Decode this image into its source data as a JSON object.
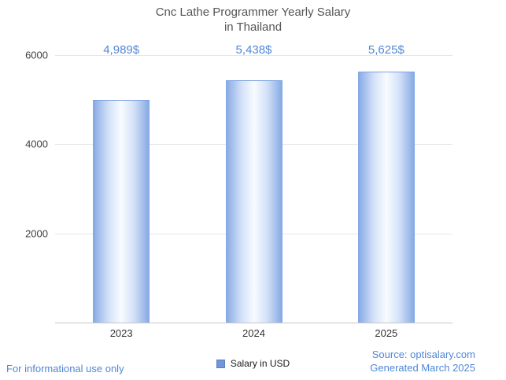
{
  "title": {
    "line1": "Cnc Lathe Programmer Yearly Salary",
    "line2": "in Thailand"
  },
  "chart_data": {
    "type": "bar",
    "categories": [
      "2023",
      "2024",
      "2025"
    ],
    "values": [
      4989,
      5438,
      5625
    ],
    "value_labels": [
      "4,989$",
      "5,438$",
      "5,625$"
    ],
    "series_name": "Salary in USD",
    "title": "Cnc Lathe Programmer Yearly Salary in Thailand",
    "xlabel": "",
    "ylabel": "",
    "ylim": [
      0,
      6000
    ],
    "yticks": [
      6000,
      4000,
      2000
    ],
    "grid": "horizontal",
    "legend_position": "bottom-center",
    "bar_color_edge": "#84a8e4",
    "bar_color_center": "#f8fbff",
    "accent_text_color": "#5287d6"
  },
  "legend": {
    "label": "Salary in USD"
  },
  "footer": {
    "left": "For informational use only",
    "source": "Source: optisalary.com",
    "generated": "Generated March 2025"
  }
}
